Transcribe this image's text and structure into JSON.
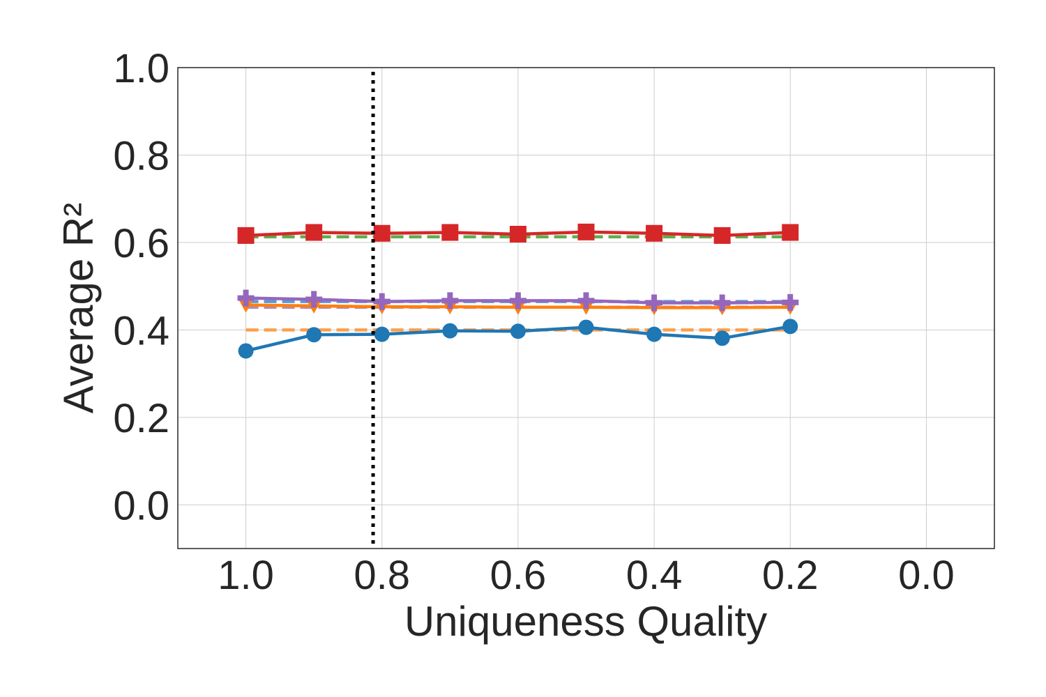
{
  "chart_data": {
    "type": "line",
    "xlabel": "Uniqueness Quality",
    "ylabel": "Average R²",
    "x": [
      1.0,
      0.9,
      0.8,
      0.7,
      0.6,
      0.5,
      0.4,
      0.3,
      0.2
    ],
    "xlim": [
      1.1,
      -0.1
    ],
    "ylim": [
      -0.1,
      1.0
    ],
    "xticks": [
      {
        "value": 1,
        "label": "1.0"
      },
      {
        "value": 0.8,
        "label": "0.8"
      },
      {
        "value": 0.6,
        "label": "0.6"
      },
      {
        "value": 0.4,
        "label": "0.4"
      },
      {
        "value": 0.2,
        "label": "0.2"
      },
      {
        "value": 0,
        "label": "0.0"
      }
    ],
    "yticks": [
      {
        "value": 0,
        "label": "0.0"
      },
      {
        "value": 0.2,
        "label": "0.2"
      },
      {
        "value": 0.4,
        "label": "0.4"
      },
      {
        "value": 0.6,
        "label": "0.6"
      },
      {
        "value": 0.8,
        "label": "0.8"
      },
      {
        "value": 1,
        "label": "1.0"
      }
    ],
    "grid": true,
    "vline": 0.813,
    "series": [
      {
        "color": "#ff9e4a",
        "dash": true,
        "values": [
          0.4,
          0.4,
          0.4,
          0.4,
          0.4,
          0.4,
          0.4,
          0.4,
          0.4
        ]
      },
      {
        "color": "#5fae4f",
        "dash": true,
        "values": [
          0.613,
          0.613,
          0.613,
          0.613,
          0.613,
          0.613,
          0.613,
          0.613,
          0.613
        ]
      },
      {
        "color": "#5a9bd5",
        "dash": true,
        "values": [
          0.465,
          0.465,
          0.465,
          0.465,
          0.465,
          0.465,
          0.465,
          0.465,
          0.465
        ]
      },
      {
        "color": "#a98bc9",
        "dash": true,
        "values": [
          0.452,
          0.452,
          0.452,
          0.452,
          0.452,
          0.452,
          0.452,
          0.452,
          0.452
        ]
      },
      {
        "color": "#1f77b4",
        "marker": "circle",
        "values": [
          0.352,
          0.389,
          0.39,
          0.398,
          0.397,
          0.406,
          0.39,
          0.381,
          0.408
        ]
      },
      {
        "color": "#ff7f0e",
        "marker": "triangle-down",
        "values": [
          0.457,
          0.455,
          0.453,
          0.453,
          0.452,
          0.452,
          0.451,
          0.451,
          0.452
        ]
      },
      {
        "color": "#d62728",
        "marker": "square",
        "values": [
          0.616,
          0.623,
          0.621,
          0.623,
          0.619,
          0.624,
          0.621,
          0.616,
          0.623
        ]
      },
      {
        "color": "#9467bd",
        "marker": "plus",
        "values": [
          0.473,
          0.47,
          0.465,
          0.467,
          0.467,
          0.467,
          0.462,
          0.462,
          0.463
        ]
      }
    ]
  }
}
